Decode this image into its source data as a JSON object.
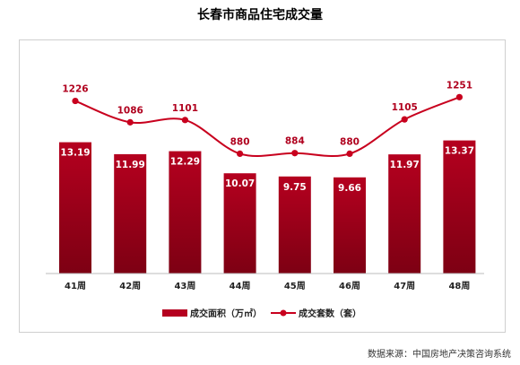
{
  "title": "长春市商品住宅成交量",
  "source": "数据来源：中国房地产决策咨询系统",
  "colors": {
    "bar": "#b5001f",
    "bar_dark": "#7d0013",
    "line": "#c8001e"
  },
  "chart_data": {
    "type": "bar+line",
    "categories": [
      "41周",
      "42周",
      "43周",
      "44周",
      "45周",
      "46周",
      "47周",
      "48周"
    ],
    "series": [
      {
        "name": "成交面积（万㎡）",
        "type": "bar",
        "values": [
          13.19,
          11.99,
          12.29,
          10.07,
          9.75,
          9.66,
          11.97,
          13.37
        ]
      },
      {
        "name": "成交套数（套）",
        "type": "line",
        "values": [
          1226,
          1086,
          1101,
          880,
          884,
          880,
          1105,
          1251
        ]
      }
    ],
    "legend_position": "bottom",
    "grid": false
  }
}
